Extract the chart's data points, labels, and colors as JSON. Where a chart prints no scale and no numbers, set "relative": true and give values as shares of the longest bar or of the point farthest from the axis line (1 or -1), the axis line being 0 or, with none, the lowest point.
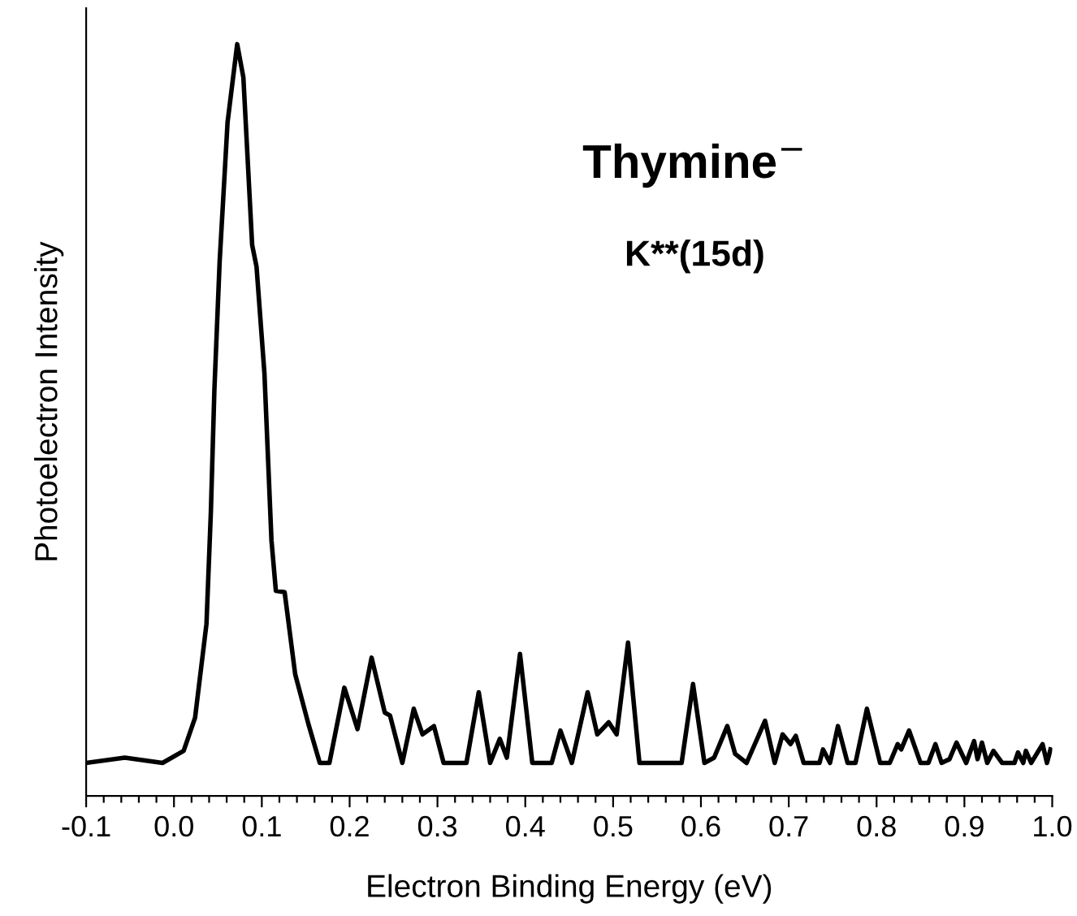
{
  "chart_data": {
    "type": "line",
    "title": "Thymine$^{−}$",
    "subtitle": "K**(15d)",
    "xlabel": "Electron Binding Energy (eV)",
    "ylabel": "Photoelectron Intensity",
    "relative": true,
    "color": "#000000",
    "xlim": [
      -0.1,
      1.0
    ],
    "xticks": [
      -0.1,
      {
        "value": -0.08,
        "label": null
      },
      {
        "value": -0.06,
        "label": null
      },
      {
        "value": -0.04,
        "label": null
      },
      {
        "value": -0.02,
        "label": null
      },
      {
        "value": 0.0,
        "label": "0.0"
      },
      {
        "value": 0.02,
        "label": null
      },
      {
        "value": 0.04,
        "label": null
      },
      {
        "value": 0.06,
        "label": null
      },
      {
        "value": 0.08,
        "label": null
      },
      0.1,
      {
        "value": 0.12,
        "label": null
      },
      {
        "value": 0.14,
        "label": null
      },
      {
        "value": 0.16,
        "label": null
      },
      {
        "value": 0.18,
        "label": null
      },
      0.2,
      {
        "value": 0.22,
        "label": null
      },
      {
        "value": 0.24,
        "label": null
      },
      {
        "value": 0.26,
        "label": null
      },
      {
        "value": 0.28,
        "label": null
      },
      0.3,
      {
        "value": 0.32,
        "label": null
      },
      {
        "value": 0.34,
        "label": null
      },
      {
        "value": 0.36,
        "label": null
      },
      {
        "value": 0.38,
        "label": null
      },
      0.4,
      {
        "value": 0.42,
        "label": null
      },
      {
        "value": 0.44,
        "label": null
      },
      {
        "value": 0.46,
        "label": null
      },
      {
        "value": 0.48,
        "label": null
      },
      0.5,
      {
        "value": 0.52,
        "label": null
      },
      {
        "value": 0.54,
        "label": null
      },
      {
        "value": 0.56,
        "label": null
      },
      {
        "value": 0.58,
        "label": null
      },
      0.6,
      {
        "value": 0.62,
        "label": null
      },
      {
        "value": 0.64,
        "label": null
      },
      {
        "value": 0.66,
        "label": null
      },
      {
        "value": 0.68,
        "label": null
      },
      0.7,
      {
        "value": 0.72,
        "label": null
      },
      {
        "value": 0.74,
        "label": null
      },
      {
        "value": 0.76,
        "label": null
      },
      {
        "value": 0.78,
        "label": null
      },
      0.8,
      {
        "value": 0.82,
        "label": null
      },
      {
        "value": 0.84,
        "label": null
      },
      {
        "value": 0.86,
        "label": null
      },
      {
        "value": 0.88,
        "label": null
      },
      0.9,
      {
        "value": 0.92,
        "label": null
      },
      {
        "value": 0.94,
        "label": null
      },
      {
        "value": 0.96,
        "label": null
      },
      {
        "value": 0.98,
        "label": null
      },
      {
        "value": 1.0,
        "label": "1.0"
      }
    ],
    "tick_labels": "x",
    "grid": false,
    "legend": false,
    "x": [
      -0.1,
      -0.056,
      -0.013,
      0.011,
      0.024,
      0.037,
      0.042,
      0.046,
      0.052,
      0.061,
      0.072,
      0.079,
      0.089,
      0.094,
      0.103,
      0.111,
      0.116,
      0.126,
      0.138,
      0.153,
      0.166,
      0.177,
      0.194,
      0.209,
      0.225,
      0.24,
      0.246,
      0.26,
      0.273,
      0.283,
      0.296,
      0.307,
      0.333,
      0.347,
      0.36,
      0.371,
      0.379,
      0.394,
      0.408,
      0.43,
      0.44,
      0.453,
      0.471,
      0.482,
      0.495,
      0.504,
      0.517,
      0.53,
      0.578,
      0.591,
      0.604,
      0.615,
      0.63,
      0.639,
      0.652,
      0.673,
      0.684,
      0.693,
      0.702,
      0.708,
      0.717,
      0.735,
      0.739,
      0.747,
      0.756,
      0.767,
      0.776,
      0.789,
      0.804,
      0.815,
      0.824,
      0.828,
      0.837,
      0.85,
      0.859,
      0.867,
      0.874,
      0.883,
      0.891,
      0.902,
      0.911,
      0.915,
      0.92,
      0.926,
      0.933,
      0.943,
      0.957,
      0.961,
      0.967,
      0.97,
      0.976,
      0.989,
      0.994,
      0.998
    ],
    "values": [
      0.044,
      0.051,
      0.044,
      0.06,
      0.104,
      0.229,
      0.378,
      0.54,
      0.711,
      0.896,
      1,
      0.956,
      0.733,
      0.704,
      0.562,
      0.34,
      0.273,
      0.271,
      0.162,
      0.096,
      0.044,
      0.044,
      0.144,
      0.089,
      0.184,
      0.111,
      0.107,
      0.044,
      0.116,
      0.082,
      0.093,
      0.044,
      0.044,
      0.138,
      0.044,
      0.076,
      0.051,
      0.189,
      0.044,
      0.044,
      0.087,
      0.044,
      0.138,
      0.082,
      0.098,
      0.082,
      0.204,
      0.044,
      0.044,
      0.149,
      0.044,
      0.051,
      0.093,
      0.056,
      0.044,
      0.1,
      0.044,
      0.082,
      0.069,
      0.08,
      0.044,
      0.044,
      0.062,
      0.044,
      0.093,
      0.044,
      0.044,
      0.116,
      0.044,
      0.044,
      0.069,
      0.062,
      0.087,
      0.044,
      0.044,
      0.069,
      0.044,
      0.049,
      0.071,
      0.044,
      0.073,
      0.049,
      0.071,
      0.044,
      0.06,
      0.044,
      0.044,
      0.058,
      0.044,
      0.06,
      0.044,
      0.069,
      0.044,
      0.062
    ]
  }
}
